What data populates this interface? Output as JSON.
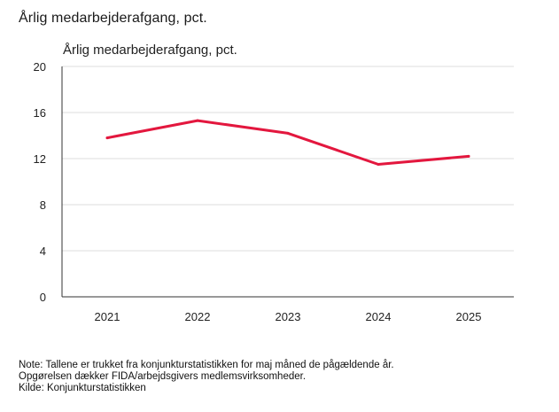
{
  "figure_title": "Årlig medarbejderafgang, pct.",
  "chart_data": {
    "type": "line",
    "title": "Årlig medarbejderafgang, pct.",
    "xlabel": "",
    "ylabel": "",
    "categories": [
      "2021",
      "2022",
      "2023",
      "2024",
      "2025"
    ],
    "series": [
      {
        "name": "Årlig medarbejderafgang, pct.",
        "values": [
          13.8,
          15.3,
          14.2,
          11.5,
          12.2
        ],
        "color": "#e3173e"
      }
    ],
    "ylim": [
      0,
      20
    ],
    "yticks": [
      "0",
      "4",
      "8",
      "12",
      "16",
      "20"
    ],
    "grid": true,
    "legend": "none"
  },
  "notes": {
    "line1": "Note: Tallene er trukket fra konjunkturstatistikken for maj måned de pågældende år.",
    "line2": "Opgørelsen dækker FIDA/arbejdsgivers medlemsvirksomheder.",
    "line3": "Kilde: Konjunkturstatistikken"
  }
}
